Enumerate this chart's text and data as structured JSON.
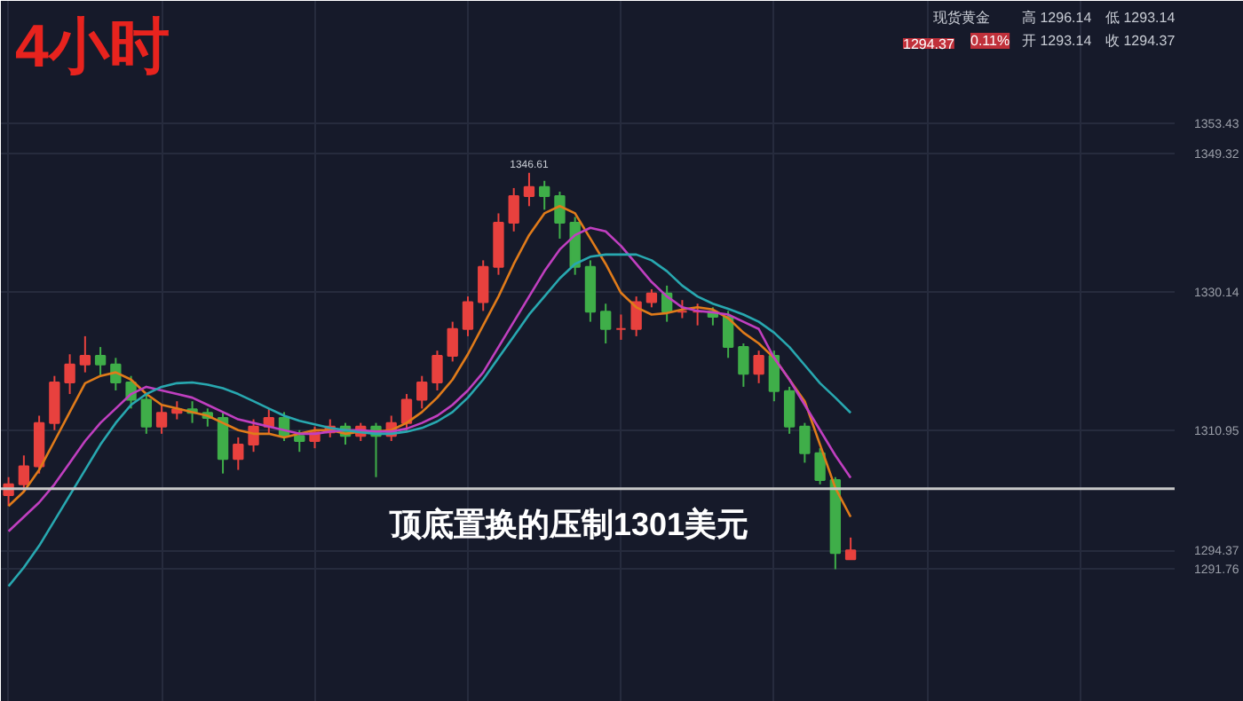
{
  "chart_data": {
    "type": "candlestick",
    "title": "4小时",
    "categories": [
      null,
      null,
      null,
      null,
      null,
      null,
      null,
      null,
      null,
      null,
      null,
      null,
      null,
      null,
      null,
      null,
      null,
      null,
      null,
      null,
      null,
      null,
      null,
      null,
      null,
      null,
      null,
      null,
      null,
      null,
      null,
      null,
      null,
      null,
      null,
      null,
      null,
      null,
      null,
      null,
      null,
      null,
      null,
      null,
      null,
      null,
      null,
      null,
      null,
      null,
      null,
      null,
      null,
      null,
      null,
      null
    ],
    "ohlc": [
      [
        1302.0,
        1304.5,
        1300.5,
        1303.5
      ],
      [
        1303.5,
        1307.5,
        1302.5,
        1306.0
      ],
      [
        1306.0,
        1313.0,
        1305.0,
        1312.0
      ],
      [
        1312.0,
        1318.5,
        1311.0,
        1317.6
      ],
      [
        1317.6,
        1321.5,
        1316.0,
        1320.1
      ],
      [
        1320.1,
        1324.0,
        1319.0,
        1321.3
      ],
      [
        1321.3,
        1322.5,
        1318.5,
        1320.1
      ],
      [
        1320.1,
        1321.0,
        1316.5,
        1317.6
      ],
      [
        1317.6,
        1318.5,
        1314.0,
        1315.2
      ],
      [
        1315.2,
        1316.0,
        1310.5,
        1311.5
      ],
      [
        1311.5,
        1314.5,
        1310.5,
        1313.4
      ],
      [
        1313.4,
        1315.0,
        1312.5,
        1313.9
      ],
      [
        1313.9,
        1315.0,
        1312.0,
        1313.4
      ],
      [
        1313.4,
        1314.0,
        1311.5,
        1312.7
      ],
      [
        1312.7,
        1313.5,
        1305.0,
        1307.0
      ],
      [
        1307.0,
        1310.0,
        1305.5,
        1309.0
      ],
      [
        1309.0,
        1312.5,
        1308.0,
        1311.5
      ],
      [
        1311.5,
        1314.0,
        1310.5,
        1312.7
      ],
      [
        1312.7,
        1313.5,
        1309.5,
        1310.2
      ],
      [
        1310.2,
        1311.0,
        1308.0,
        1309.5
      ],
      [
        1309.5,
        1311.5,
        1308.5,
        1310.7
      ],
      [
        1310.7,
        1312.5,
        1310.0,
        1311.5
      ],
      [
        1311.5,
        1312.0,
        1309.0,
        1310.2
      ],
      [
        1310.2,
        1312.0,
        1309.5,
        1311.5
      ],
      [
        1311.5,
        1312.0,
        1304.5,
        1310.2
      ],
      [
        1310.2,
        1313.0,
        1309.5,
        1312.0
      ],
      [
        1312.0,
        1316.0,
        1311.0,
        1315.2
      ],
      [
        1315.2,
        1318.5,
        1314.0,
        1317.6
      ],
      [
        1317.6,
        1322.0,
        1316.5,
        1321.3
      ],
      [
        1321.3,
        1326.0,
        1320.5,
        1325.0
      ],
      [
        1325.0,
        1329.5,
        1324.0,
        1328.7
      ],
      [
        1328.7,
        1334.5,
        1327.5,
        1333.6
      ],
      [
        1333.6,
        1341.0,
        1332.5,
        1339.7
      ],
      [
        1339.7,
        1344.5,
        1338.5,
        1343.4
      ],
      [
        1343.4,
        1346.61,
        1342.0,
        1344.65
      ],
      [
        1344.65,
        1345.5,
        1341.5,
        1343.4
      ],
      [
        1343.4,
        1344.0,
        1337.5,
        1339.7
      ],
      [
        1339.7,
        1340.5,
        1332.5,
        1333.6
      ],
      [
        1333.6,
        1334.5,
        1326.0,
        1327.4
      ],
      [
        1327.4,
        1328.5,
        1323.0,
        1325.0
      ],
      [
        1325.0,
        1327.0,
        1323.5,
        1325.0
      ],
      [
        1325.0,
        1329.5,
        1324.0,
        1328.7
      ],
      [
        1328.7,
        1330.5,
        1328.0,
        1329.9
      ],
      [
        1329.9,
        1331.0,
        1326.0,
        1327.4
      ],
      [
        1327.4,
        1329.0,
        1326.5,
        1327.4
      ],
      [
        1327.4,
        1328.5,
        1325.5,
        1327.4
      ],
      [
        1327.4,
        1328.0,
        1325.5,
        1326.7
      ],
      [
        1326.7,
        1327.5,
        1321.0,
        1322.5
      ],
      [
        1322.5,
        1323.0,
        1317.0,
        1318.8
      ],
      [
        1318.8,
        1322.0,
        1317.5,
        1321.3
      ],
      [
        1321.3,
        1322.0,
        1315.0,
        1316.4
      ],
      [
        1316.4,
        1317.0,
        1310.5,
        1311.5
      ],
      [
        1311.5,
        1312.0,
        1306.5,
        1307.8
      ],
      [
        1307.8,
        1308.5,
        1303.5,
        1304.1
      ],
      [
        1304.1,
        1304.5,
        1291.76,
        1294.0
      ],
      [
        1293.14,
        1296.14,
        1293.14,
        1294.37
      ]
    ],
    "colors": [
      "#e8413e",
      "#e8413e",
      "#e8413e",
      "#e8413e",
      "#e8413e",
      "#e8413e",
      "#3fae49",
      "#3fae49",
      "#3fae49",
      "#3fae49",
      "#e8413e",
      "#e8413e",
      "#3fae49",
      "#3fae49",
      "#3fae49",
      "#e8413e",
      "#e8413e",
      "#e8413e",
      "#3fae49",
      "#3fae49",
      "#e8413e",
      "#e8413e",
      "#3fae49",
      "#e8413e",
      "#3fae49",
      "#e8413e",
      "#e8413e",
      "#e8413e",
      "#e8413e",
      "#e8413e",
      "#e8413e",
      "#e8413e",
      "#e8413e",
      "#e8413e",
      "#e8413e",
      "#3fae49",
      "#3fae49",
      "#3fae49",
      "#3fae49",
      "#3fae49",
      "#e8413e",
      "#e8413e",
      "#e8413e",
      "#3fae49",
      "#e8413e",
      "#e8413e",
      "#3fae49",
      "#3fae49",
      "#3fae49",
      "#e8413e",
      "#3fae49",
      "#3fae49",
      "#3fae49",
      "#3fae49",
      "#3fae49",
      "#e8413e"
    ],
    "series": [
      {
        "type": "line",
        "color": "#e07b1a",
        "values": [
          1300.5,
          1302.5,
          1305.5,
          1309.5,
          1313.5,
          1317.5,
          1318.5,
          1319.0,
          1318.0,
          1316.0,
          1314.5,
          1314.0,
          1313.5,
          1313.0,
          1312.0,
          1311.0,
          1310.5,
          1310.5,
          1310.0,
          1310.5,
          1311.0,
          1311.0,
          1310.5,
          1310.8,
          1310.8,
          1311.0,
          1312.0,
          1313.5,
          1315.5,
          1318.0,
          1321.5,
          1325.5,
          1329.5,
          1334.0,
          1338.0,
          1341.0,
          1342.0,
          1341.0,
          1337.5,
          1334.0,
          1330.0,
          1328.0,
          1327.0,
          1327.2,
          1327.7,
          1328.0,
          1327.7,
          1326.5,
          1324.5,
          1323.0,
          1321.0,
          1318.0,
          1315.0,
          1309.0,
          1303.0,
          1299.0
        ]
      },
      {
        "type": "line",
        "color": "#c03fc0",
        "values": [
          1297.0,
          1299.0,
          1301.0,
          1303.5,
          1306.5,
          1309.5,
          1312.0,
          1314.0,
          1316.0,
          1317.0,
          1316.5,
          1316.0,
          1315.5,
          1314.5,
          1313.5,
          1312.5,
          1312.0,
          1311.5,
          1311.0,
          1310.5,
          1310.5,
          1310.8,
          1311.0,
          1311.0,
          1310.8,
          1310.8,
          1311.2,
          1312.0,
          1313.0,
          1314.5,
          1316.5,
          1319.0,
          1322.5,
          1326.0,
          1329.5,
          1333.0,
          1336.0,
          1338.0,
          1339.0,
          1338.5,
          1336.5,
          1334.0,
          1331.5,
          1329.5,
          1328.0,
          1327.5,
          1327.3,
          1327.0,
          1326.0,
          1325.0,
          1321.0,
          1318.0,
          1314.5,
          1311.0,
          1307.5,
          1304.4
        ]
      },
      {
        "type": "line",
        "color": "#28a8b0",
        "values": [
          1289.4,
          1292.0,
          1295.0,
          1298.5,
          1302.0,
          1305.5,
          1309.0,
          1312.0,
          1314.5,
          1316.0,
          1317.0,
          1317.5,
          1317.6,
          1317.3,
          1316.8,
          1316.0,
          1315.0,
          1314.0,
          1313.0,
          1312.3,
          1311.8,
          1311.3,
          1311.0,
          1310.7,
          1310.5,
          1310.5,
          1310.8,
          1311.3,
          1312.2,
          1313.5,
          1315.5,
          1318.0,
          1321.0,
          1324.0,
          1327.0,
          1329.5,
          1332.0,
          1334.0,
          1335.0,
          1335.3,
          1335.3,
          1335.3,
          1334.5,
          1333.0,
          1331.0,
          1329.5,
          1328.5,
          1327.8,
          1327.0,
          1326.0,
          1324.5,
          1322.5,
          1320.0,
          1317.5,
          1315.5,
          1313.4
        ]
      }
    ],
    "ylim": [
      1273.4,
      1370.4
    ],
    "yticks": [
      1353.43,
      1349.32,
      1330.14,
      1310.95,
      1294.37,
      1291.76
    ],
    "tick_labels": "y",
    "grid": true,
    "ref_lines": [
      {
        "axis": "y",
        "value": 1302.9,
        "color": "#c8c8c8"
      }
    ],
    "annotations": [
      "现货黄金",
      "1294.37",
      "0.11%",
      "高 1296.14",
      "低 1293.14",
      "开 1293.14",
      "收 1294.37",
      "顶底置换的压制1301美元",
      {
        "text": "1346.61",
        "y": 1346.61
      }
    ]
  }
}
